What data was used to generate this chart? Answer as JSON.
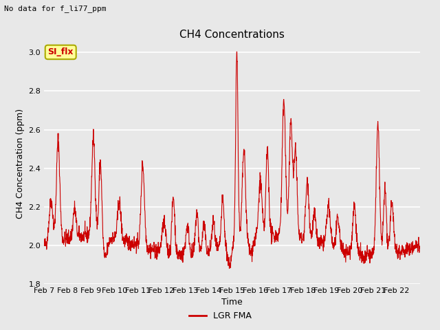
{
  "title": "CH4 Concentrations",
  "xlabel": "Time",
  "ylabel": "CH4 Concentration (ppm)",
  "top_left_text": "No data for f_li77_ppm",
  "legend_label": "LGR FMA",
  "legend_box_label": "SI_flx",
  "ylim": [
    1.8,
    3.05
  ],
  "line_color": "#cc0000",
  "line_width": 0.8,
  "background_color": "#e8e8e8",
  "grid_color": "#ffffff",
  "x_tick_labels": [
    "Feb 7",
    "Feb 8",
    "Feb 9",
    "Feb 10",
    "Feb 11",
    "Feb 12",
    "Feb 13",
    "Feb 14",
    "Feb 15",
    "Feb 16",
    "Feb 17",
    "Feb 18",
    "Feb 19",
    "Feb 20",
    "Feb 21",
    "Feb 22"
  ],
  "legend_box_facecolor": "#ffff99",
  "legend_box_edgecolor": "#aaaa00",
  "legend_box_text_color": "#cc0000",
  "yticks": [
    1.8,
    2.0,
    2.2,
    2.4,
    2.6,
    2.8,
    3.0
  ],
  "title_fontsize": 11,
  "label_fontsize": 9,
  "tick_fontsize": 8
}
